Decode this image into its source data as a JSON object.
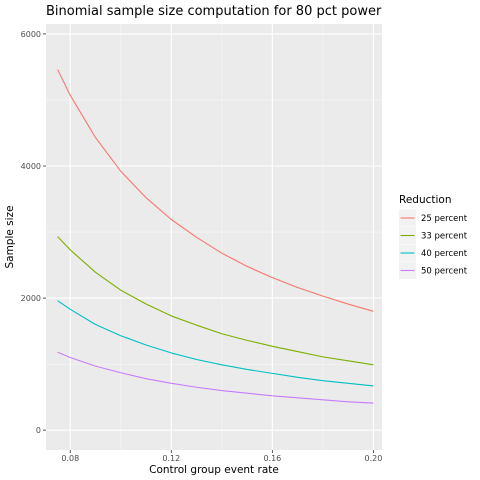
{
  "chart_data": {
    "type": "line",
    "title": "Binomial sample size computation for 80 pct power",
    "xlabel": "Control group event rate",
    "ylabel": "Sample size",
    "xlim": [
      0.0704,
      0.2034
    ],
    "ylim": [
      -300,
      6150
    ],
    "x_ticks": [
      0.08,
      0.12,
      0.16,
      0.2
    ],
    "x_tick_labels": [
      "0.08",
      "0.12",
      "0.16",
      "0.20"
    ],
    "y_ticks": [
      0,
      2000,
      4000,
      6000
    ],
    "y_tick_labels": [
      "0",
      "2000",
      "4000",
      "6000"
    ],
    "grid": true,
    "legend_title": "Reduction",
    "legend_position": "right",
    "x": [
      0.075,
      0.08,
      0.09,
      0.1,
      0.11,
      0.12,
      0.13,
      0.14,
      0.15,
      0.16,
      0.17,
      0.18,
      0.19,
      0.2
    ],
    "series": [
      {
        "name": "25 percent",
        "color": "#F8766D",
        "values": [
          5460,
          5070,
          4430,
          3920,
          3520,
          3190,
          2920,
          2680,
          2480,
          2310,
          2160,
          2030,
          1910,
          1800
        ]
      },
      {
        "name": "33 percent",
        "color": "#7CAE00",
        "values": [
          2930,
          2730,
          2390,
          2120,
          1910,
          1730,
          1590,
          1460,
          1360,
          1270,
          1190,
          1110,
          1050,
          990
        ]
      },
      {
        "name": "40 percent",
        "color": "#00BFC4",
        "values": [
          1960,
          1830,
          1600,
          1430,
          1290,
          1170,
          1070,
          990,
          920,
          860,
          800,
          750,
          710,
          670
        ]
      },
      {
        "name": "50 percent",
        "color": "#C77CFF",
        "values": [
          1180,
          1100,
          970,
          870,
          780,
          710,
          650,
          600,
          560,
          520,
          490,
          460,
          430,
          410
        ]
      }
    ]
  }
}
